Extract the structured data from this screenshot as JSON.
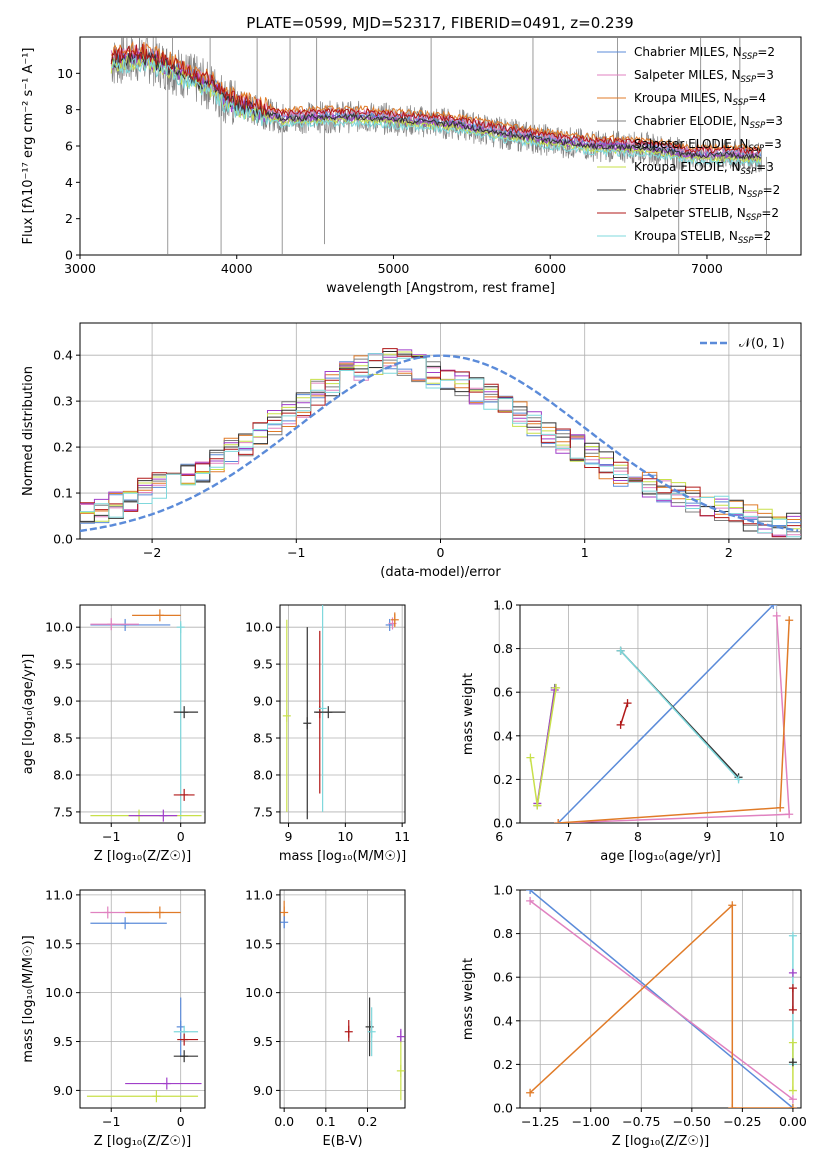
{
  "figure_title": "PLATE=0599, MJD=52317, FIBERID=0491, z=0.239",
  "colors": {
    "Chabrier MILES": "#5b8bd9",
    "Salpeter MILES": "#e082c0",
    "Kroupa MILES": "#e07b28",
    "Chabrier ELODIE": "#7f7f7f",
    "Salpeter ELODIE": "#a03fc9",
    "Kroupa ELODIE": "#c8e04a",
    "Chabrier STELIB": "#333333",
    "Salpeter STELIB": "#b01818",
    "Kroupa STELIB": "#7fd8dc",
    "data": "#808080",
    "normal": "#5b8bd9",
    "grid": "#b0b0b0"
  },
  "chart_data": [
    {
      "id": "spectrum",
      "type": "line",
      "title": "PLATE=0599, MJD=52317, FIBERID=0491, z=0.239",
      "xlabel": "wavelength [Angstrom, rest frame]",
      "ylabel": "Flux [fλ10⁻¹⁷ erg cm⁻² s⁻¹ A⁻¹]",
      "xlim": [
        3000,
        7600
      ],
      "ylim": [
        0,
        12
      ],
      "xticks": [
        "3000",
        "4000",
        "5000",
        "6000",
        "7000"
      ],
      "yticks": [
        "0",
        "2",
        "4",
        "6",
        "8",
        "10"
      ],
      "grid": false,
      "legend_position": "top-right",
      "legend": [
        {
          "name": "Chabrier MILES",
          "label": "Chabrier MILES, N",
          "sub": "SSP",
          "tail": "=2"
        },
        {
          "name": "Salpeter MILES",
          "label": "Salpeter MILES, N",
          "sub": "SSP",
          "tail": "=3"
        },
        {
          "name": "Kroupa MILES",
          "label": "Kroupa MILES, N",
          "sub": "SSP",
          "tail": "=4"
        },
        {
          "name": "Chabrier ELODIE",
          "label": "Chabrier ELODIE, N",
          "sub": "SSP",
          "tail": "=3"
        },
        {
          "name": "Salpeter ELODIE",
          "label": "Salpeter ELODIE, N",
          "sub": "SSP",
          "tail": "=3"
        },
        {
          "name": "Kroupa ELODIE",
          "label": "Kroupa ELODIE, N",
          "sub": "SSP",
          "tail": "=3"
        },
        {
          "name": "Chabrier STELIB",
          "label": "Chabrier STELIB, N",
          "sub": "SSP",
          "tail": "=2"
        },
        {
          "name": "Salpeter STELIB",
          "label": "Salpeter STELIB, N",
          "sub": "SSP",
          "tail": "=2"
        },
        {
          "name": "Kroupa STELIB",
          "label": "Kroupa STELIB, N",
          "sub": "SSP",
          "tail": "=2"
        }
      ],
      "continuum": {
        "x": [
          3200,
          3400,
          3550,
          3700,
          3850,
          3950,
          4100,
          4300,
          4500,
          4800,
          5100,
          5400,
          5700,
          6000,
          6300,
          6600,
          6900,
          7200,
          7350
        ],
        "y": [
          10.6,
          10.9,
          10.4,
          9.8,
          9.2,
          8.4,
          8.0,
          7.5,
          7.6,
          7.6,
          7.4,
          7.2,
          6.7,
          6.3,
          6.0,
          5.9,
          5.5,
          5.5,
          5.4
        ]
      },
      "spikes": [
        {
          "x": 3560,
          "y": 0
        },
        {
          "x": 3590,
          "y": 12
        },
        {
          "x": 3830,
          "y": 12
        },
        {
          "x": 3900,
          "y": 0
        },
        {
          "x": 4130,
          "y": 12
        },
        {
          "x": 4290,
          "y": 0
        },
        {
          "x": 4340,
          "y": 12
        },
        {
          "x": 4510,
          "y": 12
        },
        {
          "x": 4560,
          "y": 0.6
        },
        {
          "x": 5240,
          "y": 12
        },
        {
          "x": 5890,
          "y": 12
        },
        {
          "x": 6430,
          "y": 12
        },
        {
          "x": 6820,
          "y": 0
        },
        {
          "x": 6960,
          "y": 12
        },
        {
          "x": 7210,
          "y": 12
        },
        {
          "x": 7380,
          "y": 0
        }
      ]
    },
    {
      "id": "residuals",
      "type": "line",
      "xlabel": "(data-model)/error",
      "ylabel": "Normed distribution",
      "xlim": [
        -2.5,
        2.5
      ],
      "ylim": [
        0,
        0.47
      ],
      "xticks": [
        "-2",
        "-1",
        "0",
        "1",
        "2"
      ],
      "yticks": [
        "0.0",
        "0.1",
        "0.2",
        "0.3",
        "0.4"
      ],
      "grid": true,
      "legend_position": "top-right",
      "legend": [
        "𝒩(0, 1)"
      ],
      "normal": {
        "mu": 0,
        "sigma": 1
      },
      "hist_centers": [
        -2.4,
        -2.2,
        -2.0,
        -1.8,
        -1.6,
        -1.4,
        -1.2,
        -1.0,
        -0.8,
        -0.6,
        -0.4,
        -0.2,
        0.0,
        0.2,
        0.4,
        0.6,
        0.8,
        1.0,
        1.2,
        1.4,
        1.6,
        1.8,
        2.0,
        2.2,
        2.4
      ],
      "hist_profile": [
        0.05,
        0.08,
        0.11,
        0.13,
        0.16,
        0.2,
        0.24,
        0.28,
        0.33,
        0.37,
        0.39,
        0.38,
        0.35,
        0.33,
        0.3,
        0.26,
        0.22,
        0.19,
        0.15,
        0.12,
        0.1,
        0.08,
        0.06,
        0.04,
        0.03
      ]
    },
    {
      "id": "age-vs-z",
      "type": "scatter",
      "xlabel": "Z [log₁₀(Z/Z☉)]",
      "ylabel": "age  [log₁₀(age/yr)]",
      "xlim": [
        -1.45,
        0.35
      ],
      "ylim": [
        7.35,
        10.3
      ],
      "xticks": [
        "-1",
        "0"
      ],
      "yticks": [
        "7.5",
        "8.0",
        "8.5",
        "9.0",
        "9.5",
        "10.0"
      ],
      "grid": true,
      "points": [
        {
          "series": "Chabrier MILES",
          "x": -0.8,
          "y": 10.03,
          "xerr": [
            0.5,
            0.65
          ]
        },
        {
          "series": "Salpeter MILES",
          "x": -1.0,
          "y": 10.04,
          "xerr": [
            0.3,
            0.4
          ]
        },
        {
          "series": "Kroupa MILES",
          "x": -0.3,
          "y": 10.16,
          "xerr": [
            0.4,
            0.3
          ]
        },
        {
          "series": "Kroupa STELIB",
          "x": 0.0,
          "y": 10.0,
          "yerr": [
            2.6,
            0.05
          ]
        },
        {
          "series": "Chabrier STELIB",
          "x": 0.05,
          "y": 8.85,
          "xerr": [
            0.15,
            0.2
          ]
        },
        {
          "series": "Salpeter STELIB",
          "x": 0.05,
          "y": 7.73,
          "xerr": [
            0.15,
            0.15
          ]
        },
        {
          "series": "Kroupa ELODIE",
          "x": -0.6,
          "y": 7.45,
          "xerr": [
            0.7,
            0.9
          ]
        },
        {
          "series": "Salpeter ELODIE",
          "x": -0.25,
          "y": 7.45,
          "xerr": [
            0.5,
            0.2
          ]
        }
      ]
    },
    {
      "id": "age-vs-mass",
      "type": "scatter",
      "xlabel": "mass [log₁₀(M/M☉)]",
      "xlim": [
        8.85,
        11.05
      ],
      "ylim": [
        7.35,
        10.3
      ],
      "xticks": [
        "9",
        "10",
        "11"
      ],
      "yticks": [
        "7.5",
        "8.0",
        "8.5",
        "9.0",
        "9.5",
        "10.0"
      ],
      "grid": true,
      "points": [
        {
          "series": "Kroupa ELODIE",
          "x": 8.97,
          "y": 8.8,
          "yerr": [
            1.3,
            1.3
          ]
        },
        {
          "series": "Chabrier STELIB",
          "x": 9.33,
          "y": 8.7,
          "yerr": [
            1.3,
            1.3
          ]
        },
        {
          "series": "Salpeter STELIB",
          "x": 9.55,
          "y": 8.85,
          "yerr": [
            1.1,
            1.1
          ]
        },
        {
          "series": "Kroupa STELIB",
          "x": 9.6,
          "y": 8.9,
          "yerr": [
            1.4,
            1.4
          ]
        },
        {
          "series": "Chabrier STELIB",
          "x": 9.7,
          "y": 8.85,
          "xerr": [
            0.25,
            0.3
          ]
        },
        {
          "series": "Chabrier MILES",
          "x": 10.78,
          "y": 10.03
        },
        {
          "series": "Salpeter MILES",
          "x": 10.83,
          "y": 10.05
        },
        {
          "series": "Kroupa MILES",
          "x": 10.87,
          "y": 10.1,
          "yerr": [
            0.1,
            0.1
          ]
        }
      ]
    },
    {
      "id": "weight-vs-age",
      "type": "line",
      "xlabel": "age  [log₁₀(age/yr)]",
      "ylabel": "mass weight",
      "xlim": [
        6.3,
        10.35
      ],
      "ylim": [
        0,
        1
      ],
      "xticks": [
        "6",
        "7",
        "8",
        "9",
        "10"
      ],
      "yticks": [
        "0.0",
        "0.2",
        "0.4",
        "0.6",
        "0.8",
        "1.0"
      ],
      "grid": true,
      "series": [
        {
          "name": "Chabrier MILES",
          "x": [
            9.95,
            6.85
          ],
          "y": [
            1.0,
            0.0
          ]
        },
        {
          "name": "Salpeter MILES",
          "x": [
            10.0,
            10.18,
            6.85
          ],
          "y": [
            0.95,
            0.04,
            0.0
          ]
        },
        {
          "name": "Kroupa MILES",
          "x": [
            10.18,
            10.05,
            6.85
          ],
          "y": [
            0.93,
            0.07,
            0.0
          ]
        },
        {
          "name": "Chabrier ELODIE",
          "x": [
            6.8,
            6.55
          ],
          "y": [
            0.62,
            0.08
          ]
        },
        {
          "name": "Salpeter ELODIE",
          "x": [
            6.8,
            6.55
          ],
          "y": [
            0.61,
            0.09
          ]
        },
        {
          "name": "Kroupa ELODIE",
          "x": [
            6.82,
            6.55,
            6.45
          ],
          "y": [
            0.62,
            0.08,
            0.3
          ]
        },
        {
          "name": "Chabrier STELIB",
          "x": [
            7.75,
            9.45
          ],
          "y": [
            0.79,
            0.21
          ]
        },
        {
          "name": "Salpeter STELIB",
          "x": [
            7.75,
            7.85
          ],
          "y": [
            0.45,
            0.55
          ]
        },
        {
          "name": "Kroupa STELIB",
          "x": [
            7.75,
            9.45
          ],
          "y": [
            0.79,
            0.2
          ]
        }
      ]
    },
    {
      "id": "mass-vs-z",
      "type": "scatter",
      "xlabel": "Z [log₁₀(Z/Z☉)]",
      "ylabel": "mass [log₁₀(M/M☉)]",
      "xlim": [
        -1.45,
        0.35
      ],
      "ylim": [
        8.82,
        11.05
      ],
      "xticks": [
        "-1",
        "0"
      ],
      "yticks": [
        "9.0",
        "9.5",
        "10.0",
        "10.5",
        "11.0"
      ],
      "grid": true,
      "points": [
        {
          "series": "Chabrier MILES",
          "x": -0.8,
          "y": 10.71,
          "xerr": [
            0.5,
            0.6
          ]
        },
        {
          "series": "Salpeter MILES",
          "x": -1.05,
          "y": 10.82,
          "xerr": [
            0.25,
            0.6
          ]
        },
        {
          "series": "Kroupa MILES",
          "x": -0.3,
          "y": 10.82,
          "xerr": [
            0.5,
            0.3
          ]
        },
        {
          "series": "Chabrier MILES",
          "x": 0.0,
          "y": 9.65,
          "yerr": [
            0.3,
            0.3
          ]
        },
        {
          "series": "Kroupa STELIB",
          "x": 0.05,
          "y": 9.6,
          "xerr": [
            0.15,
            0.2
          ]
        },
        {
          "series": "Salpeter STELIB",
          "x": 0.05,
          "y": 9.52,
          "xerr": [
            0.1,
            0.2
          ]
        },
        {
          "series": "Chabrier STELIB",
          "x": 0.05,
          "y": 9.35,
          "xerr": [
            0.15,
            0.2
          ]
        },
        {
          "series": "Salpeter ELODIE",
          "x": -0.2,
          "y": 9.07,
          "xerr": [
            0.6,
            0.5
          ]
        },
        {
          "series": "Kroupa ELODIE",
          "x": -0.35,
          "y": 8.94,
          "xerr": [
            1.0,
            0.6
          ]
        }
      ]
    },
    {
      "id": "mass-vs-ebv",
      "type": "scatter",
      "xlabel": "E(B-V)",
      "xlim": [
        -0.01,
        0.29
      ],
      "ylim": [
        8.82,
        11.05
      ],
      "xticks": [
        "0.0",
        "0.1",
        "0.2"
      ],
      "yticks": [
        "9.0",
        "9.5",
        "10.0",
        "10.5",
        "11.0"
      ],
      "grid": true,
      "points": [
        {
          "series": "Kroupa MILES",
          "x": 0.0,
          "y": 10.82,
          "yerr": [
            0.1,
            0.12
          ]
        },
        {
          "series": "Chabrier MILES",
          "x": 0.0,
          "y": 10.72,
          "yerr": [
            0.06,
            0.06
          ]
        },
        {
          "series": "Salpeter STELIB",
          "x": 0.155,
          "y": 9.6,
          "yerr": [
            0.1,
            0.12
          ]
        },
        {
          "series": "Chabrier STELIB",
          "x": 0.205,
          "y": 9.65,
          "yerr": [
            0.3,
            0.3
          ]
        },
        {
          "series": "Kroupa STELIB",
          "x": 0.21,
          "y": 9.6,
          "yerr": [
            0.25,
            0.25
          ]
        },
        {
          "series": "Salpeter ELODIE",
          "x": 0.28,
          "y": 9.55,
          "yerr": [
            0.05,
            0.08
          ]
        },
        {
          "series": "Kroupa ELODIE",
          "x": 0.28,
          "y": 9.2,
          "yerr": [
            0.3,
            0.3
          ]
        }
      ]
    },
    {
      "id": "weight-vs-z",
      "type": "line",
      "xlabel": "Z [log₁₀(Z/Z☉)]",
      "ylabel": "mass weight",
      "xlim": [
        -1.35,
        0.04
      ],
      "ylim": [
        0,
        1
      ],
      "xticks": [
        "-1.25",
        "-1.00",
        "-0.75",
        "-0.50",
        "-0.25",
        "0.00"
      ],
      "xtick_values": [
        -1.25,
        -1.0,
        -0.75,
        -0.5,
        -0.25,
        0.0
      ],
      "yticks": [
        "0.0",
        "0.2",
        "0.4",
        "0.6",
        "0.8",
        "1.0"
      ],
      "grid": true,
      "series": [
        {
          "name": "Chabrier MILES",
          "x": [
            -1.3,
            0.0
          ],
          "y": [
            1.0,
            0.0
          ]
        },
        {
          "name": "Salpeter MILES",
          "x": [
            -1.3,
            0.0
          ],
          "y": [
            0.95,
            0.04
          ]
        },
        {
          "name": "Kroupa MILES",
          "x": [
            -1.3,
            -0.3,
            -0.3,
            0.0
          ],
          "y": [
            0.07,
            0.93,
            0.0,
            0.0
          ]
        },
        {
          "name": "Kroupa STELIB",
          "x": [
            0.0,
            0.0
          ],
          "y": [
            0.2,
            0.79
          ]
        },
        {
          "name": "Kroupa ELODIE",
          "x": [
            0.0,
            0.0
          ],
          "y": [
            0.08,
            0.3
          ]
        },
        {
          "name": "Chabrier STELIB",
          "x": [
            0.0
          ],
          "y": [
            0.21
          ]
        },
        {
          "name": "Salpeter STELIB",
          "x": [
            0.0,
            0.0
          ],
          "y": [
            0.45,
            0.55
          ]
        },
        {
          "name": "Salpeter ELODIE",
          "x": [
            0.0
          ],
          "y": [
            0.62
          ]
        }
      ]
    }
  ]
}
